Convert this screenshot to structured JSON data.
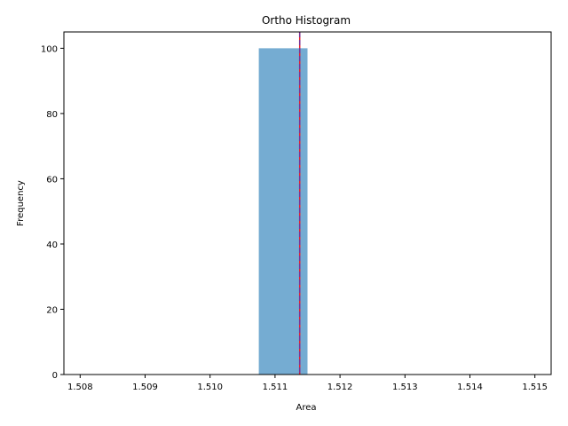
{
  "chart_data": {
    "type": "bar",
    "title": "Ortho Histogram",
    "xlabel": "Area",
    "ylabel": "Frequency",
    "xlim": [
      1.50775,
      1.51525
    ],
    "ylim": [
      0,
      105
    ],
    "x_ticks": [
      1.508,
      1.509,
      1.51,
      1.511,
      1.512,
      1.513,
      1.514,
      1.515
    ],
    "x_tick_labels": [
      "1.508",
      "1.509",
      "1.510",
      "1.511",
      "1.512",
      "1.513",
      "1.514",
      "1.515"
    ],
    "y_ticks": [
      0,
      20,
      40,
      60,
      80,
      100
    ],
    "y_tick_labels": [
      "0",
      "20",
      "40",
      "60",
      "80",
      "100"
    ],
    "bins": [
      {
        "x_start": 1.51075,
        "x_end": 1.5115,
        "count": 100
      }
    ],
    "bar_color": "#75acd2",
    "reference_lines": [
      {
        "x": 1.51138,
        "color": "#e8202a",
        "style": "solid"
      },
      {
        "x": 1.51138,
        "color": "#7b3294",
        "style": "dashed"
      }
    ],
    "grid": false,
    "legend": "none"
  }
}
